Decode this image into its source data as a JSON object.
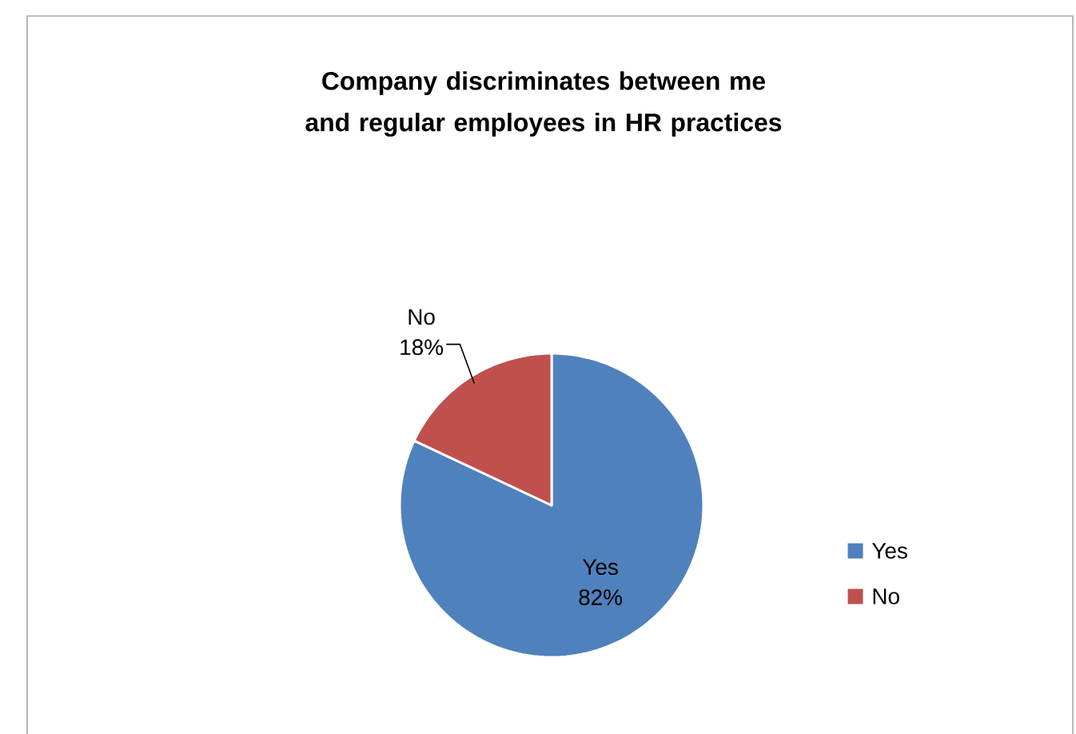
{
  "chart_data": {
    "type": "pie",
    "title": "Company discriminates between me and regular employees in HR practices",
    "categories": [
      "Yes",
      "No"
    ],
    "values": [
      82,
      18
    ],
    "colors": [
      "#4f81bd",
      "#c0504d"
    ],
    "value_labels": [
      "82%",
      "18%"
    ],
    "legend": "right"
  }
}
